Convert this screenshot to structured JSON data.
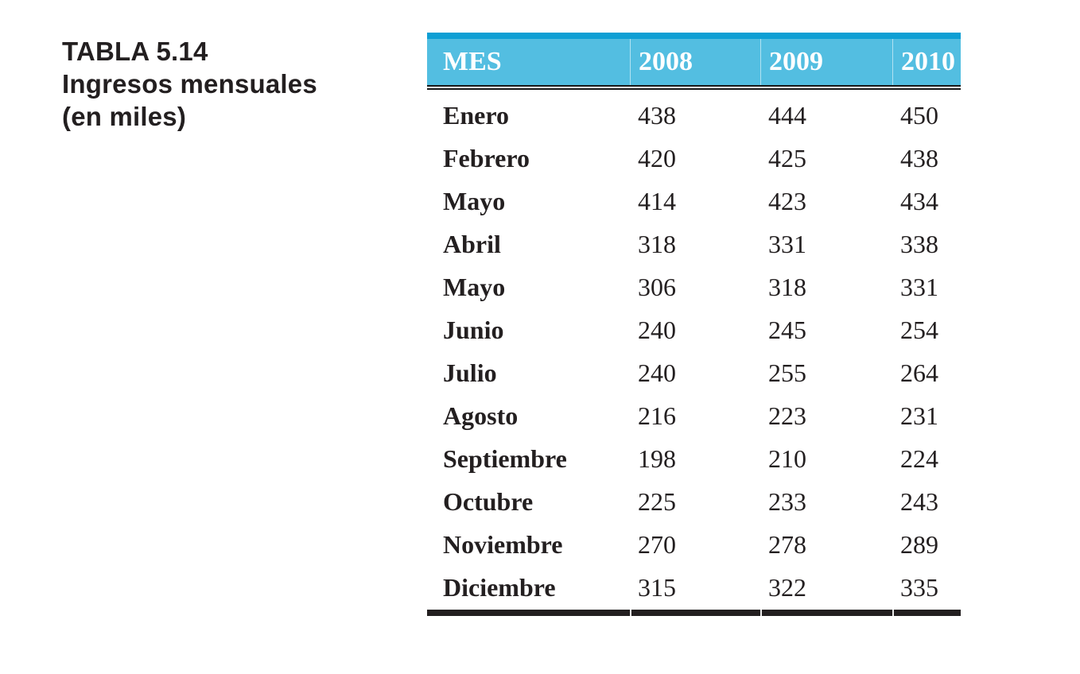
{
  "caption": {
    "label": "TABLA 5.14",
    "subtitle_line1": "Ingresos mensuales",
    "subtitle_line2": "(en miles)"
  },
  "table": {
    "header": {
      "columns": [
        "MES",
        "2008",
        "2009",
        "2010"
      ]
    },
    "rows": [
      {
        "month": "Enero",
        "values": [
          "438",
          "444",
          "450"
        ]
      },
      {
        "month": "Febrero",
        "values": [
          "420",
          "425",
          "438"
        ]
      },
      {
        "month": "Mayo",
        "values": [
          "414",
          "423",
          "434"
        ]
      },
      {
        "month": "Abril",
        "values": [
          "318",
          "331",
          "338"
        ]
      },
      {
        "month": "Mayo",
        "values": [
          "306",
          "318",
          "331"
        ]
      },
      {
        "month": "Junio",
        "values": [
          "240",
          "245",
          "254"
        ]
      },
      {
        "month": "Julio",
        "values": [
          "240",
          "255",
          "264"
        ]
      },
      {
        "month": "Agosto",
        "values": [
          "216",
          "223",
          "231"
        ]
      },
      {
        "month": "Septiembre",
        "values": [
          "198",
          "210",
          "224"
        ]
      },
      {
        "month": "Octubre",
        "values": [
          "225",
          "233",
          "243"
        ]
      },
      {
        "month": "Noviembre",
        "values": [
          "270",
          "278",
          "289"
        ]
      },
      {
        "month": "Diciembre",
        "values": [
          "315",
          "322",
          "335"
        ]
      }
    ]
  },
  "colors": {
    "header_background": "#53bee1",
    "header_top_stripe": "#0d9fd4",
    "header_text": "#ffffff",
    "body_text": "#231f20",
    "bottom_rule": "#231f20"
  }
}
